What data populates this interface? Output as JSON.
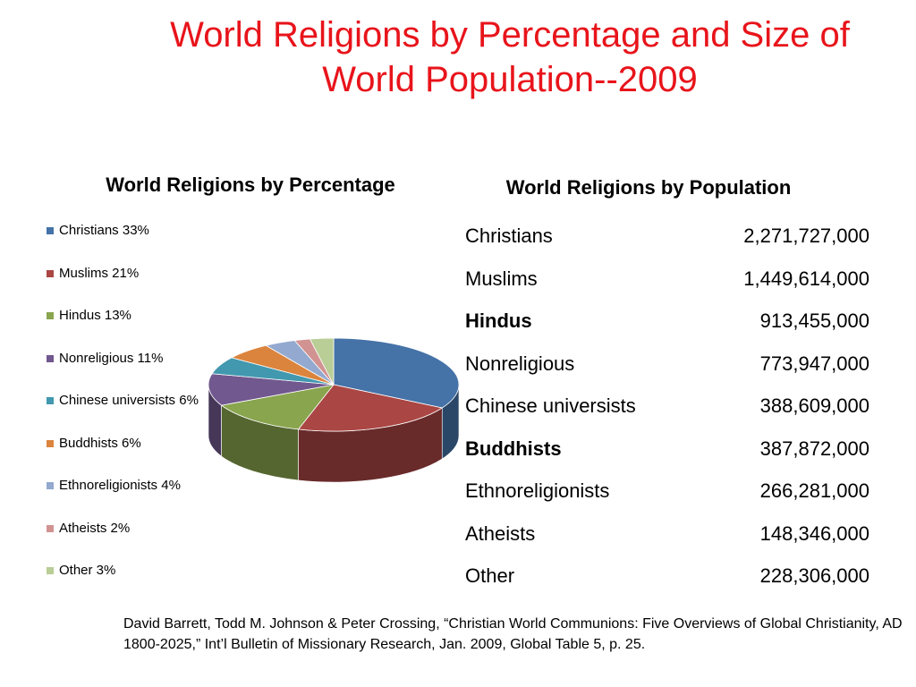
{
  "slide": {
    "title": "World Religions by Percentage and Size  of\nWorld Population--2009",
    "citation": "David Barrett, Todd M. Johnson & Peter Crossing,  “Christian World Communions: Five Overviews of Global Christianity, AD 1800-2025,” Int’l Bulletin of Missionary Research,  Jan. 2009,  Global Table 5, p. 25."
  },
  "chart_data": [
    {
      "type": "pie",
      "title": "World Religions by Percentage",
      "style": "3d",
      "legend_position": "left",
      "categories": [
        "Christians",
        "Muslims",
        "Hindus",
        "Nonreligious",
        "Chinese universists",
        "Buddhists",
        "Ethnoreligionists",
        "Atheists",
        "Other"
      ],
      "values": [
        33,
        21,
        13,
        11,
        6,
        6,
        4,
        2,
        3
      ],
      "legend": [
        "Christians 33%",
        "Muslims 21%",
        "Hindus 13%",
        "Nonreligious 11%",
        "Chinese universists 6%",
        "Buddhists 6%",
        "Ethnoreligionists 4%",
        "Atheists 2%",
        "Other 3%"
      ],
      "colors": [
        "#4572a7",
        "#aa4643",
        "#89a54e",
        "#71588f",
        "#4198af",
        "#db843d",
        "#93a9cf",
        "#d19392",
        "#b9cd96"
      ]
    },
    {
      "type": "table",
      "title": "World Religions by Population",
      "rows": [
        {
          "name": "Christians",
          "value": "2,271,727,000",
          "bold": false
        },
        {
          "name": "Muslims",
          "value": "1,449,614,000",
          "bold": false
        },
        {
          "name": "Hindus",
          "value": "913,455,000",
          "bold": true
        },
        {
          "name": "Nonreligious",
          "value": "773,947,000",
          "bold": false
        },
        {
          "name": "Chinese universists",
          "value": "388,609,000",
          "bold": false
        },
        {
          "name": "Buddhists",
          "value": "387,872,000",
          "bold": true
        },
        {
          "name": "Ethnoreligionists",
          "value": "266,281,000",
          "bold": false
        },
        {
          "name": "Atheists",
          "value": "148,346,000",
          "bold": false
        },
        {
          "name": "Other",
          "value": "228,306,000",
          "bold": false
        }
      ]
    }
  ]
}
